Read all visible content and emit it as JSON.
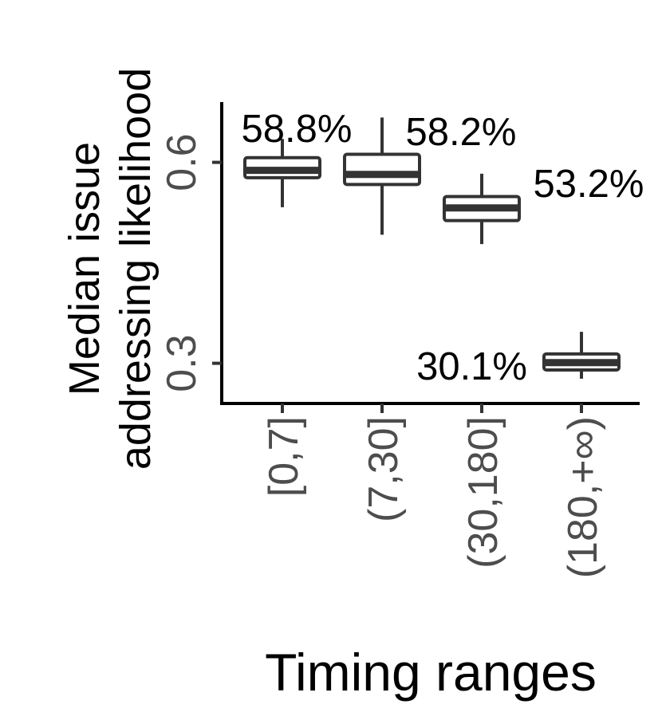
{
  "chart_data": {
    "type": "box",
    "xlabel": "Timing ranges",
    "ylabel_lines": [
      "Median issue",
      "addressing likelihood"
    ],
    "ylim": [
      0.24,
      0.69
    ],
    "y_ticks": [
      {
        "value": 0.3,
        "label": "0.3"
      },
      {
        "value": 0.6,
        "label": "0.6"
      }
    ],
    "categories": [
      "[0,7]",
      "(7,30]",
      "(30,180]",
      "(180,+∞)"
    ],
    "boxes": [
      {
        "category": "[0,7]",
        "whisker_low": 0.533,
        "q1": 0.577,
        "median": 0.588,
        "q3": 0.607,
        "whisker_high": 0.635,
        "label": "58.8%"
      },
      {
        "category": "(7,30]",
        "whisker_low": 0.492,
        "q1": 0.567,
        "median": 0.582,
        "q3": 0.612,
        "whisker_high": 0.667,
        "label": "58.2%"
      },
      {
        "category": "(30,180]",
        "whisker_low": 0.478,
        "q1": 0.513,
        "median": 0.532,
        "q3": 0.549,
        "whisker_high": 0.583,
        "label": "53.2%"
      },
      {
        "category": "(180,+∞)",
        "whisker_low": 0.277,
        "q1": 0.29,
        "median": 0.301,
        "q3": 0.314,
        "whisker_high": 0.347,
        "label": "30.1%"
      }
    ],
    "box_color": "#333333",
    "fill_color": "#ffffff",
    "grid": false
  }
}
